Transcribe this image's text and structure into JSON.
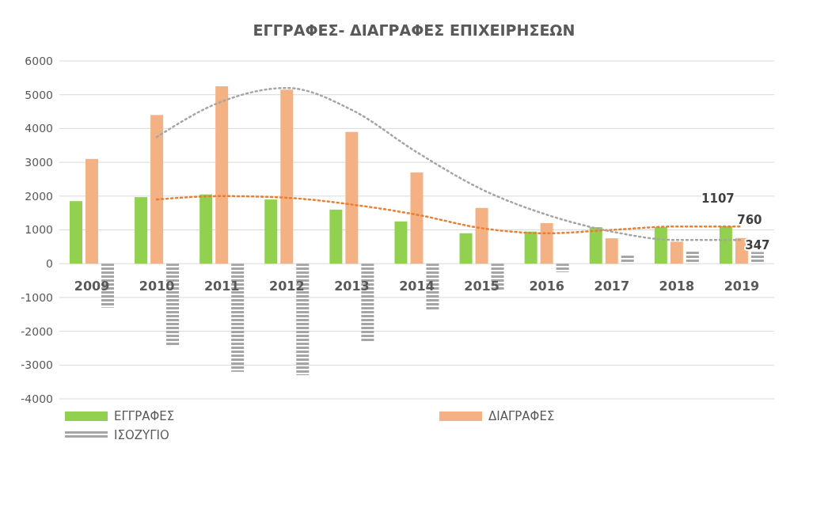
{
  "chart_data": {
    "type": "bar",
    "title": "ΕΓΓΡΑΦΕΣ- ΔΙΑΓΡΑΦΕΣ ΕΠΙΧΕΙΡΗΣΕΩΝ",
    "categories": [
      "2009",
      "2010",
      "2011",
      "2012",
      "2013",
      "2014",
      "2015",
      "2016",
      "2017",
      "2018",
      "2019"
    ],
    "series": [
      {
        "name": "ΕΓΓΡΑΦΕΣ",
        "color": "#92d050",
        "values": [
          1850,
          1970,
          2050,
          1900,
          1600,
          1250,
          900,
          950,
          1080,
          1080,
          1107
        ],
        "value_labels": [
          null,
          null,
          null,
          null,
          null,
          null,
          null,
          null,
          null,
          null,
          "1107"
        ]
      },
      {
        "name": "ΔΙΑΓΡΑΦΕΣ",
        "color": "#f4b183",
        "values": [
          3100,
          4400,
          5250,
          5150,
          3900,
          2700,
          1650,
          1200,
          750,
          650,
          760
        ],
        "value_labels": [
          null,
          null,
          null,
          null,
          null,
          null,
          null,
          null,
          null,
          null,
          "760"
        ]
      },
      {
        "name": "ΙΣΟΖΥΓΙΟ",
        "color": "#a5a5a5",
        "values": [
          -1300,
          -2450,
          -3200,
          -3300,
          -2300,
          -1400,
          -800,
          -250,
          250,
          400,
          347
        ],
        "value_labels": [
          null,
          null,
          null,
          null,
          null,
          null,
          null,
          null,
          null,
          null,
          "347"
        ]
      },
      {
        "type": "line",
        "color": "#ed7d31",
        "line_style": "dotted",
        "values": [
          null,
          1900,
          2000,
          1950,
          1750,
          1450,
          1050,
          900,
          1000,
          1100,
          1100
        ]
      },
      {
        "type": "line",
        "color": "#a5a5a5",
        "line_style": "dotted",
        "values": [
          null,
          3750,
          4800,
          5200,
          4550,
          3300,
          2200,
          1450,
          950,
          700,
          700
        ]
      }
    ],
    "ylim": [
      -4000,
      6000
    ],
    "yticks": [
      -4000,
      -3000,
      -2000,
      -1000,
      0,
      1000,
      2000,
      3000,
      4000,
      5000,
      6000
    ],
    "grid": "y",
    "legend": "bottom",
    "marker": "none"
  }
}
